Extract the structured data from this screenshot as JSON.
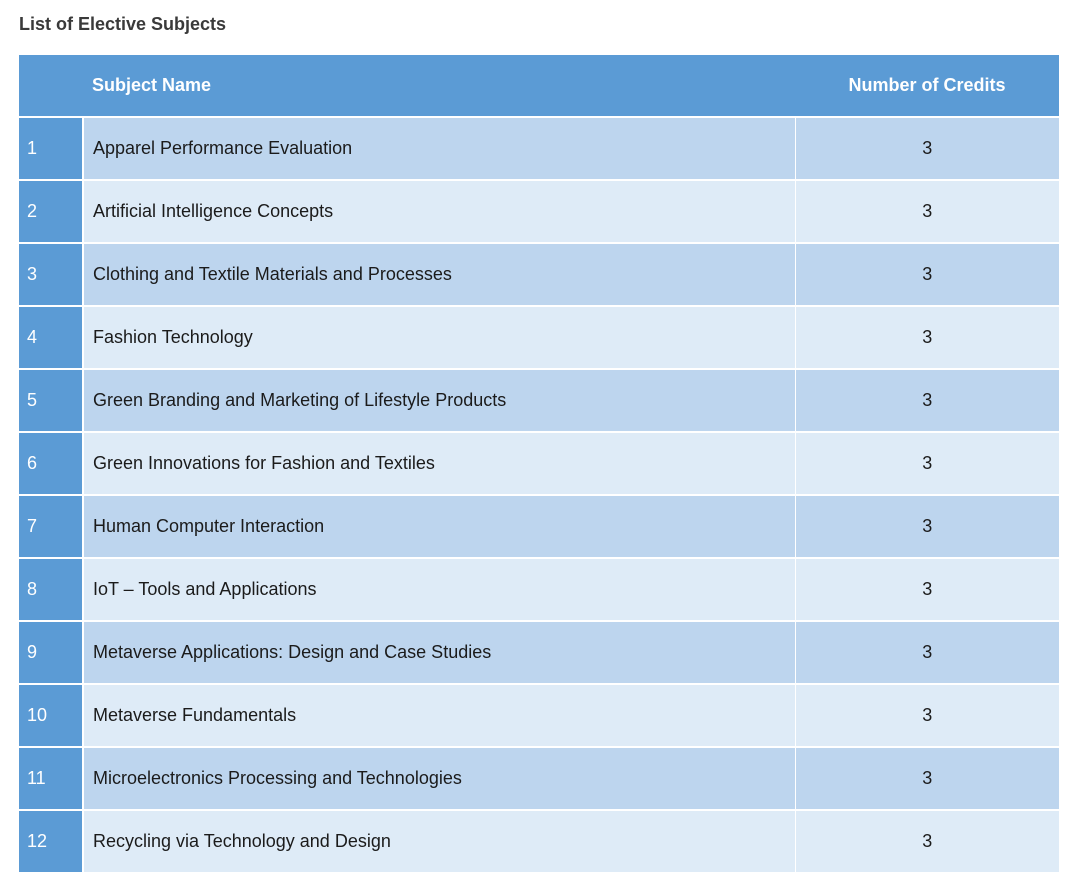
{
  "page": {
    "title": "List of Elective Subjects"
  },
  "table": {
    "headers": {
      "number": "",
      "subject_name": "Subject Name",
      "credits": "Number of Credits"
    },
    "rows": [
      {
        "num": "1",
        "name": "Apparel Performance Evaluation",
        "credits": "3"
      },
      {
        "num": "2",
        "name": "Artificial Intelligence Concepts",
        "credits": "3"
      },
      {
        "num": "3",
        "name": "Clothing and Textile Materials and Processes",
        "credits": "3"
      },
      {
        "num": "4",
        "name": "Fashion Technology",
        "credits": "3"
      },
      {
        "num": "5",
        "name": "Green Branding and Marketing of Lifestyle Products",
        "credits": "3"
      },
      {
        "num": "6",
        "name": "Green Innovations for Fashion and Textiles",
        "credits": "3"
      },
      {
        "num": "7",
        "name": "Human Computer Interaction",
        "credits": "3"
      },
      {
        "num": "8",
        "name": "IoT – Tools and Applications",
        "credits": "3"
      },
      {
        "num": "9",
        "name": "Metaverse Applications: Design and Case Studies",
        "credits": "3"
      },
      {
        "num": "10",
        "name": "Metaverse Fundamentals",
        "credits": "3"
      },
      {
        "num": "11",
        "name": "Microelectronics Processing and Technologies",
        "credits": "3"
      },
      {
        "num": "12",
        "name": "Recycling via Technology and Design",
        "credits": "3"
      }
    ]
  },
  "colors": {
    "header_blue": "#5b9bd5",
    "row_dark": "#bdd5ee",
    "row_light": "#deebf7",
    "title_text": "#3a3a3a"
  }
}
